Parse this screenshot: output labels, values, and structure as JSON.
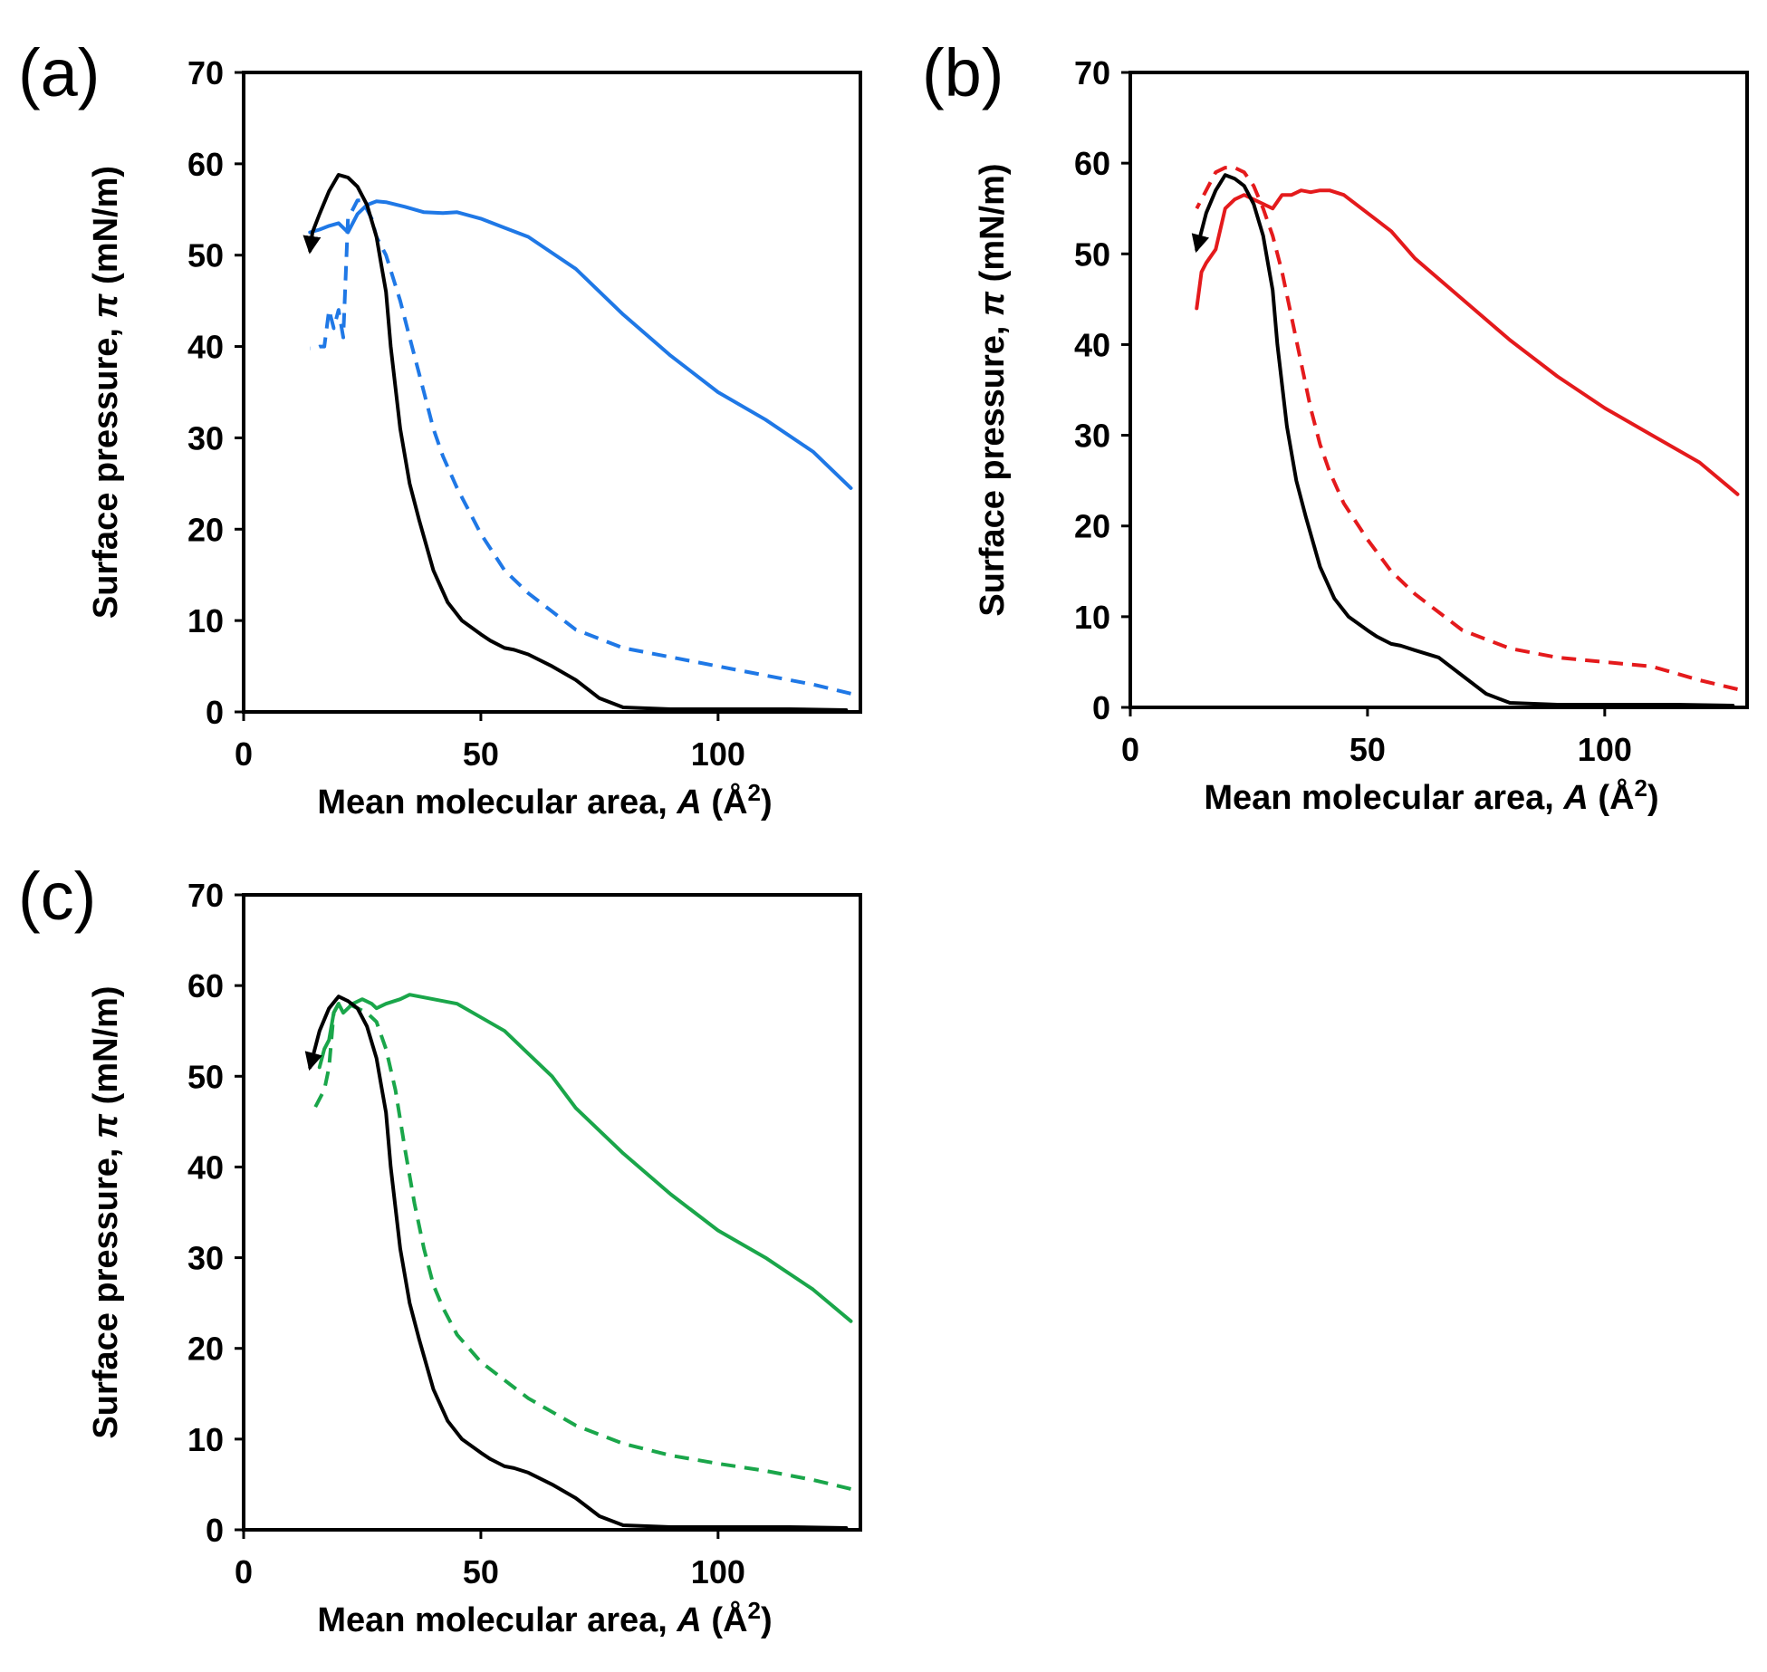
{
  "chart_data": [
    {
      "type": "line",
      "panel_label": "(a)",
      "xlabel": {
        "main": "Mean molecular area, ",
        "var": "A",
        "unit_open": " (Å",
        "sup": "2",
        "unit_close": ")"
      },
      "ylabel": {
        "main": "Surface pressure, ",
        "var": "π",
        "unit": " (mN/m)"
      },
      "xlim": [
        0,
        130
      ],
      "ylim": [
        0,
        70
      ],
      "xticks": [
        0,
        50,
        100
      ],
      "yticks": [
        0,
        10,
        20,
        30,
        40,
        50,
        60,
        70
      ],
      "series": [
        {
          "color": "#1f78e6",
          "style": "solid",
          "x": [
            128,
            120,
            110,
            100,
            90,
            80,
            70,
            60,
            55,
            50,
            45,
            42,
            38,
            34,
            30,
            28,
            26,
            24,
            22,
            20,
            18,
            16,
            14
          ],
          "y": [
            24.5,
            28.5,
            32,
            35,
            39,
            43.5,
            48.5,
            52,
            53,
            54,
            54.7,
            54.6,
            54.7,
            55.3,
            55.8,
            55.9,
            55.5,
            54.5,
            52.5,
            53.5,
            53.2,
            52.8,
            52.5
          ]
        },
        {
          "color": "#1f78e6",
          "style": "dashed",
          "x": [
            128,
            120,
            110,
            100,
            90,
            80,
            70,
            65,
            60,
            55,
            50,
            45,
            42,
            40,
            38,
            35,
            33,
            30,
            28,
            27,
            25,
            24,
            22,
            21,
            20,
            19,
            18,
            17,
            16,
            15,
            14
          ],
          "y": [
            2,
            3,
            4,
            5,
            6,
            7,
            9,
            11,
            13,
            15.5,
            19.5,
            24.5,
            28,
            31,
            35,
            41,
            45,
            50,
            52,
            54,
            56,
            56,
            54,
            41,
            44,
            42,
            44,
            40,
            40,
            39.8,
            39.8
          ]
        },
        {
          "color": "#000000",
          "style": "solid",
          "arrow": true,
          "x": [
            127,
            115,
            100,
            90,
            80,
            75,
            70,
            65,
            60,
            57,
            55,
            52,
            50,
            46,
            43,
            40,
            37,
            35,
            33,
            31,
            30,
            29,
            28,
            26,
            24,
            22,
            20,
            18,
            16,
            14.5,
            14
          ],
          "y": [
            0.2,
            0.3,
            0.3,
            0.3,
            0.5,
            1.5,
            3.5,
            5,
            6.3,
            6.8,
            7,
            7.8,
            8.5,
            10,
            12,
            15.5,
            21,
            25,
            31,
            40,
            46,
            49,
            52,
            55.5,
            57.5,
            58.5,
            58.8,
            57,
            54.5,
            52.5,
            50.5
          ]
        }
      ]
    },
    {
      "type": "line",
      "panel_label": "(b)",
      "xlabel": {
        "main": "Mean molecular area, ",
        "var": "A",
        "unit_open": " (Å",
        "sup": "2",
        "unit_close": ")"
      },
      "ylabel": {
        "main": "Surface pressure, ",
        "var": "π",
        "unit": " (mN/m)"
      },
      "xlim": [
        0,
        130
      ],
      "ylim": [
        0,
        70
      ],
      "xticks": [
        0,
        50,
        100
      ],
      "yticks": [
        0,
        10,
        20,
        30,
        40,
        50,
        60,
        70
      ],
      "series": [
        {
          "color": "#e41a1c",
          "style": "solid",
          "x": [
            128,
            120,
            110,
            100,
            90,
            80,
            70,
            60,
            55,
            50,
            45,
            42,
            40,
            38,
            36,
            34,
            32,
            30,
            28,
            26,
            24,
            22,
            20,
            18,
            16,
            15,
            14
          ],
          "y": [
            23.5,
            27,
            30,
            33,
            36.5,
            40.5,
            45,
            49.5,
            52.5,
            54.5,
            56.5,
            57,
            57,
            56.8,
            57,
            56.5,
            56.5,
            55,
            55.5,
            56,
            56.5,
            56,
            55,
            50.5,
            49,
            48,
            44
          ]
        },
        {
          "color": "#e41a1c",
          "style": "dashed",
          "x": [
            128,
            120,
            110,
            100,
            90,
            80,
            70,
            65,
            60,
            55,
            50,
            45,
            42,
            40,
            38,
            36,
            34,
            32,
            30,
            28,
            26,
            24,
            22,
            20,
            18,
            16,
            14
          ],
          "y": [
            2,
            3,
            4.5,
            5,
            5.5,
            6.5,
            8.5,
            10.5,
            12.5,
            15,
            18.5,
            22.5,
            26,
            29,
            33,
            38,
            43,
            48,
            52,
            55,
            57.5,
            59,
            59.5,
            59.5,
            59,
            57,
            55
          ]
        },
        {
          "color": "#000000",
          "style": "solid",
          "arrow": true,
          "x": [
            127,
            115,
            100,
            90,
            80,
            75,
            70,
            65,
            60,
            57,
            55,
            52,
            50,
            46,
            43,
            40,
            37,
            35,
            33,
            31,
            30,
            29,
            28,
            26,
            24,
            22,
            20,
            18,
            16,
            15,
            14
          ],
          "y": [
            0.2,
            0.3,
            0.3,
            0.3,
            0.5,
            1.5,
            3.5,
            5.5,
            6.3,
            6.8,
            7,
            7.8,
            8.5,
            10,
            12,
            15.5,
            21,
            25,
            31,
            40,
            46,
            49,
            52,
            55.5,
            57.5,
            58.3,
            58.7,
            57,
            54.5,
            52.5,
            50.5
          ]
        }
      ]
    },
    {
      "type": "line",
      "panel_label": "(c)",
      "xlabel": {
        "main": "Mean molecular area, ",
        "var": "A",
        "unit_open": " (Å",
        "sup": "2",
        "unit_close": ")"
      },
      "ylabel": {
        "main": "Surface pressure, ",
        "var": "π",
        "unit": " (mN/m)"
      },
      "xlim": [
        0,
        130
      ],
      "ylim": [
        0,
        70
      ],
      "xticks": [
        0,
        50,
        100
      ],
      "yticks": [
        0,
        10,
        20,
        30,
        40,
        50,
        60,
        70
      ],
      "series": [
        {
          "color": "#1aa64a",
          "style": "solid",
          "x": [
            128,
            120,
            110,
            100,
            90,
            80,
            70,
            65,
            60,
            55,
            50,
            45,
            40,
            35,
            33,
            30,
            28,
            27,
            25,
            23,
            21,
            20,
            19,
            18,
            17,
            16
          ],
          "y": [
            23,
            26.5,
            30,
            33,
            37,
            41.5,
            46.5,
            50,
            52.5,
            55,
            56.5,
            58,
            58.5,
            59,
            58.5,
            58,
            57.5,
            58,
            58.5,
            58,
            57,
            58,
            57,
            54,
            53,
            51
          ]
        },
        {
          "color": "#1aa64a",
          "style": "dashed",
          "x": [
            128,
            120,
            110,
            100,
            90,
            80,
            70,
            65,
            60,
            55,
            50,
            45,
            42,
            40,
            38,
            36,
            34,
            32,
            30,
            28,
            26,
            24,
            22,
            20,
            19,
            18,
            17,
            16,
            15,
            14
          ],
          "y": [
            4.5,
            5.5,
            6.5,
            7.3,
            8.2,
            9.5,
            11.5,
            13,
            14.5,
            16.5,
            18.5,
            21.5,
            24.5,
            27,
            31,
            36,
            42,
            48.5,
            53,
            56,
            57,
            57.5,
            58,
            58,
            57,
            51,
            48.5,
            47.5,
            46.5,
            46.5
          ]
        },
        {
          "color": "#000000",
          "style": "solid",
          "arrow": true,
          "x": [
            127,
            115,
            100,
            90,
            80,
            75,
            70,
            65,
            60,
            57,
            55,
            52,
            50,
            46,
            43,
            40,
            37,
            35,
            33,
            31,
            30,
            29,
            28,
            26,
            24,
            22,
            20,
            18,
            16,
            15,
            14
          ],
          "y": [
            0.2,
            0.3,
            0.3,
            0.3,
            0.5,
            1.5,
            3.5,
            5,
            6.3,
            6.8,
            7,
            7.8,
            8.5,
            10,
            12,
            15.5,
            21,
            25,
            31,
            40,
            46,
            49,
            52,
            55.5,
            57.5,
            58.3,
            58.8,
            57.5,
            55,
            53,
            51
          ]
        }
      ]
    }
  ]
}
